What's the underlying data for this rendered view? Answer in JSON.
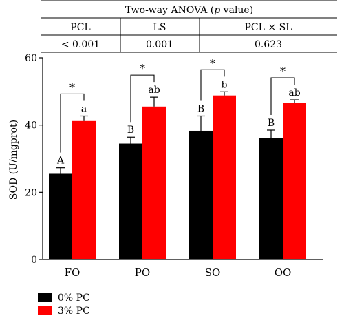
{
  "anova_table": {
    "title_prefix": "Two-way ANOVA (",
    "title_italic": "p",
    "title_suffix": " value)",
    "headers": [
      "PCL",
      "LS",
      "PCL × SL"
    ],
    "values": [
      "< 0.001",
      "0.001",
      "0.623"
    ]
  },
  "chart_data": {
    "type": "bar",
    "ylabel": "SOD (U/mgprot)",
    "ylim": [
      0,
      60
    ],
    "yticks": [
      0,
      20,
      40,
      60
    ],
    "categories": [
      "FO",
      "PO",
      "SO",
      "OO"
    ],
    "series": [
      {
        "name": "0% PC",
        "color": "#000000",
        "values": [
          25.5,
          34.5,
          38.3,
          36.2
        ],
        "errors": [
          1.8,
          1.9,
          4.4,
          2.3
        ],
        "labels": [
          "A",
          "B",
          "B",
          "B"
        ]
      },
      {
        "name": "3% PC",
        "color": "#ff0000",
        "values": [
          41.2,
          45.5,
          48.8,
          46.6
        ],
        "errors": [
          1.5,
          2.8,
          1.1,
          0.9
        ],
        "labels": [
          "a",
          "ab",
          "b",
          "ab"
        ]
      }
    ],
    "significance": [
      "*",
      "*",
      "*",
      "*"
    ],
    "legend_position": "bottom-left"
  }
}
